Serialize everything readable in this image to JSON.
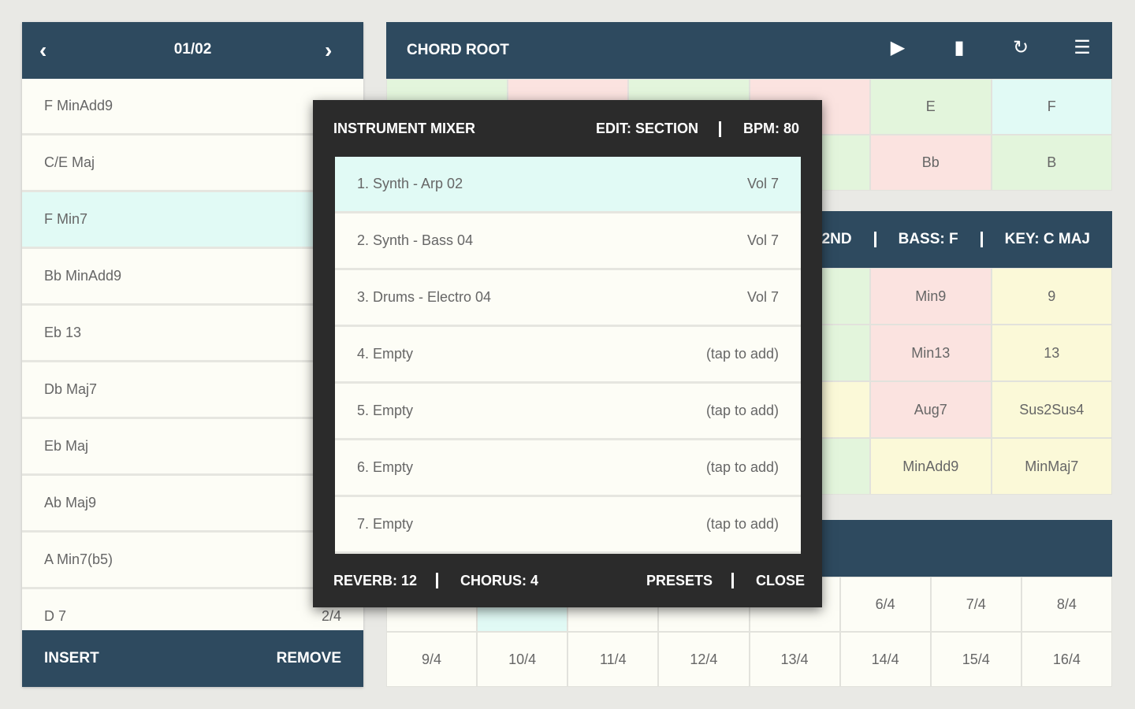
{
  "sequence_panel": {
    "page": "01/02",
    "items": [
      {
        "label": "F MinAdd9"
      },
      {
        "label": "C/E Maj"
      },
      {
        "label": "F Min7"
      },
      {
        "label": "Bb MinAdd9"
      },
      {
        "label": "Eb 13"
      },
      {
        "label": "Db Maj7"
      },
      {
        "label": "Eb Maj"
      },
      {
        "label": "Ab Maj9"
      },
      {
        "label": "A Min7(b5)"
      },
      {
        "label": "D 7",
        "beats": "2/4"
      }
    ],
    "actions": [
      "INSERT",
      "REMOVE"
    ]
  },
  "chord_root_panel": {
    "title": "CHORD ROOT",
    "notes": [
      "E",
      "F",
      "Bb",
      "B"
    ]
  },
  "chord_type_panel": {
    "header": [
      ": 2ND",
      "BASS: F",
      "KEY: C MAJ"
    ],
    "types": [
      "Min9",
      "9",
      "Min13",
      "13",
      "Aug7",
      "Sus2Sus4",
      "MinAdd9",
      "MinMaj7"
    ]
  },
  "length_panel": {
    "lengths": [
      "6/4",
      "7/4",
      "8/4",
      "9/4",
      "10/4",
      "11/4",
      "12/4",
      "13/4",
      "14/4",
      "15/4",
      "16/4"
    ]
  },
  "mixer": {
    "title": "INSTRUMENT MIXER",
    "edit": "EDIT: SECTION",
    "bpm": "BPM: 80",
    "tracks": [
      {
        "name": "1. Synth - Arp 02",
        "volume": "Vol 7"
      },
      {
        "name": "2. Synth - Bass 04",
        "volume": "Vol 7"
      },
      {
        "name": "3. Drums - Electro 04",
        "volume": "Vol 7"
      },
      {
        "name": "4. Empty",
        "volume": "(tap to add)"
      },
      {
        "name": "5. Empty",
        "volume": "(tap to add)"
      },
      {
        "name": "6. Empty",
        "volume": "(tap to add)"
      },
      {
        "name": "7. Empty",
        "volume": "(tap to add)"
      }
    ],
    "reverb": "REVERB: 12",
    "chorus": "CHORUS: 4",
    "presets": "PRESETS",
    "close": "CLOSE"
  }
}
